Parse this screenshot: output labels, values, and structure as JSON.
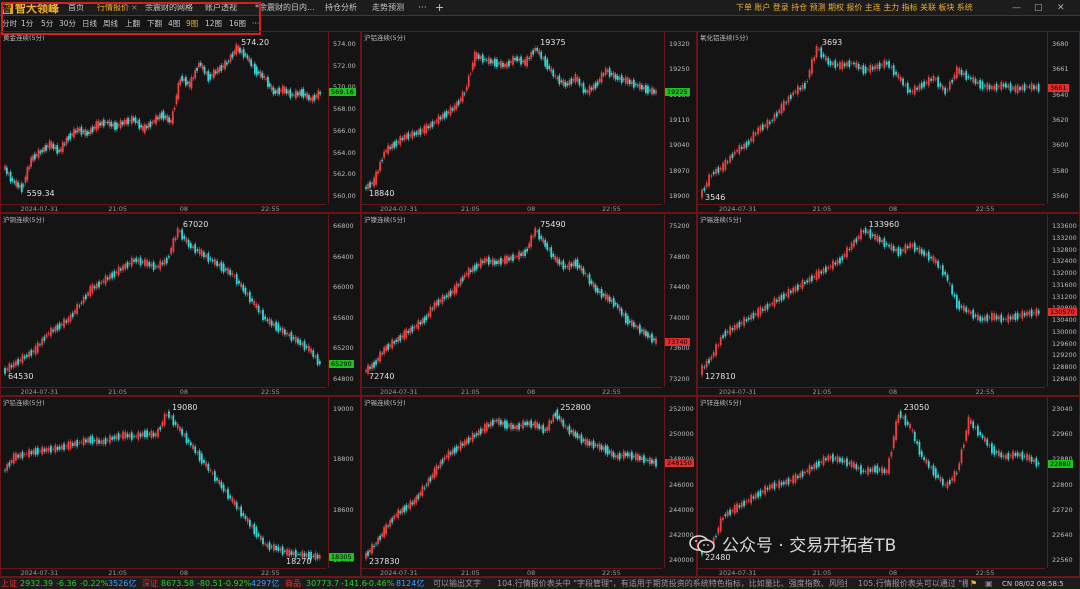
{
  "app": {
    "logo_text": "智大领峰",
    "tabs": [
      {
        "label": "首页",
        "active": false
      },
      {
        "label": "行情报价",
        "active": true
      },
      {
        "label": "余震财的网格",
        "active": false
      },
      {
        "label": "账户透视",
        "active": false
      },
      {
        "label": "*余震财的日内...",
        "active": false
      },
      {
        "label": "持仓分析",
        "active": false
      },
      {
        "label": "走势预测",
        "active": false
      }
    ],
    "more_label": "···",
    "add_label": "+",
    "right_menu": [
      "下单",
      "账户",
      "登录",
      "持仓",
      "预测",
      "期权",
      "报价",
      "主连",
      "主力",
      "指标",
      "关联",
      "板块",
      "系统"
    ]
  },
  "periods": {
    "items": [
      "分时",
      "1分",
      "5分",
      "30分",
      "日线",
      "周线",
      "上翻",
      "下翻",
      "4图",
      "9图",
      "12图",
      "16图",
      "···"
    ],
    "active": "9图"
  },
  "panels": [
    {
      "title": "黄金连续(5分)",
      "ticks": [
        "574.00",
        "572.00",
        "570.00",
        "568.00",
        "566.00",
        "564.00",
        "562.00",
        "560.00"
      ],
      "current": "569.16",
      "current_color": "#20c020",
      "high": "574.20",
      "low": "559.34",
      "times": [
        "2024-07-31",
        "21:05",
        "08",
        "22:55"
      ]
    },
    {
      "title": "沪铝连续(5分)",
      "ticks": [
        "19320",
        "19250",
        "19180",
        "19110",
        "19040",
        "18970",
        "18900"
      ],
      "current": "19225",
      "current_color": "#20c020",
      "high": "19375",
      "low": "18840",
      "times": [
        "2024-07-31",
        "21:05",
        "08",
        "22:55"
      ]
    },
    {
      "title": "氧化铝连续(5分)",
      "ticks": [
        "3680",
        "3661",
        "3640",
        "3620",
        "3600",
        "3580",
        "3560"
      ],
      "current": "3661",
      "current_color": "#e03030",
      "high": "3693",
      "low": "3546",
      "times": [
        "2024-07-31",
        "21:05",
        "08",
        "22:55"
      ]
    },
    {
      "title": "沪铜连续(5分)",
      "ticks": [
        "66800",
        "66400",
        "66000",
        "65600",
        "65200",
        "64800"
      ],
      "current": "65290",
      "current_color": "#20c020",
      "high": "67020",
      "low": "64530",
      "times": [
        "2024-07-31",
        "21:05",
        "08",
        "22:55"
      ]
    },
    {
      "title": "沪镍连续(5分)",
      "ticks": [
        "75200",
        "74800",
        "74400",
        "74000",
        "73600",
        "73200"
      ],
      "current": "73740",
      "current_color": "#e03030",
      "high": "75490",
      "low": "72740",
      "times": [
        "2024-07-31",
        "21:05",
        "08",
        "22:55"
      ]
    },
    {
      "title": "沪锡连续(5分)",
      "ticks": [
        "133600",
        "133200",
        "132800",
        "132400",
        "132000",
        "131600",
        "131200",
        "130800",
        "130400",
        "130000",
        "129600",
        "129200",
        "128800",
        "128400"
      ],
      "current": "130570",
      "current_color": "#e03030",
      "high": "133960",
      "low": "127810",
      "times": [
        "2024-07-31",
        "21:05",
        "08",
        "22:55"
      ]
    },
    {
      "title": "沪铅连续(5分)",
      "ticks": [
        "19000",
        "18800",
        "18600",
        "18400"
      ],
      "current": "18305",
      "current_color": "#20c020",
      "high": "19080",
      "low": "18270",
      "times": [
        "2024-07-31",
        "21:05",
        "08",
        "22:55"
      ]
    },
    {
      "title": "沪锡连续(5分)",
      "ticks": [
        "252000",
        "250000",
        "248000",
        "246000",
        "244000",
        "242000",
        "240000"
      ],
      "current": "248150",
      "current_color": "#e03030",
      "high": "252800",
      "low": "237830",
      "times": [
        "2024-07-31",
        "21:05",
        "08",
        "22:55"
      ]
    },
    {
      "title": "沪锌连续(5分)",
      "ticks": [
        "23040",
        "22960",
        "22880",
        "22800",
        "22720",
        "22640",
        "22560"
      ],
      "current": "22880",
      "current_color": "#20c020",
      "high": "23050",
      "low": "22480",
      "times": [
        "2024-07-31",
        "21:05",
        "08",
        "22:55"
      ]
    }
  ],
  "status": {
    "sh_label": "上证",
    "sh_value": "2932.39",
    "sh_change": "-6.36",
    "sh_pct": "-0.22%",
    "sh_amount": "3526亿",
    "sz_label": "深证",
    "sz_value": "8673.58",
    "sz_change": "-80.51",
    "sz_pct": "-0.92%",
    "sz_amount": "4297亿",
    "cy_label": "商品",
    "cy_value": "30773.7",
    "cy_change": "-141.6",
    "cy_pct": "-0.46%",
    "cy_amount": "8124亿",
    "news1": "可以输出文字",
    "news2": "104.行情报价表头中 \"字段管理\"，有适用于期货投资的系统特色指标，比如量比、强度指数、风险指数等",
    "news3": "105.行情报价表头可以通过 \"棚/",
    "clock": "CN 08/02 08:58:5"
  },
  "watermark": "公众号 · 交易开拓者TB"
}
